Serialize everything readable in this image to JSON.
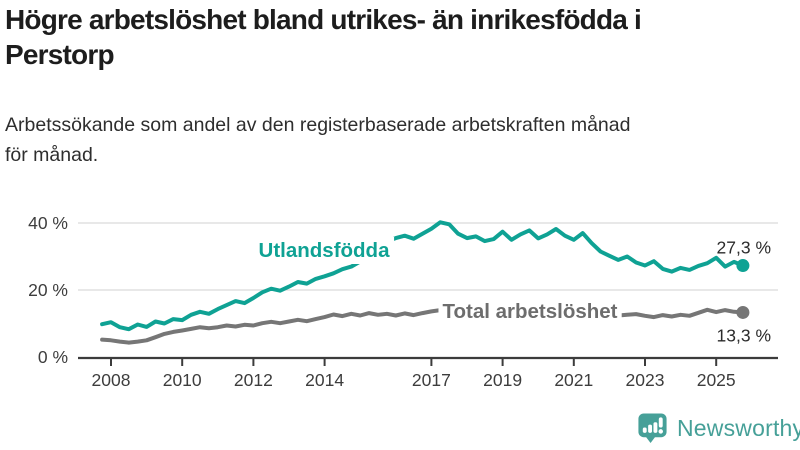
{
  "title_lines": [
    "Högre arbetslöshet bland utrikes- än inrikesfödda i",
    "Perstorp"
  ],
  "subtitle_lines": [
    "Arbetssökande som andel av den registerbaserade arbetskraften månad",
    "för månad."
  ],
  "footer": {
    "brand": "Newsworthy",
    "logo_icon": "bar-chart-speech-bubble-icon"
  },
  "colors": {
    "accent_teal": "#0fa294",
    "line_gray": "#767676",
    "label_gray": "#6d6d6d",
    "grid": "#d9d9d9",
    "axis": "#3c3c3c",
    "tick_text": "#3d3d3d",
    "value_text": "#2b2b2b",
    "brand_teal": "#46a098"
  },
  "chart_data": {
    "type": "line",
    "title": "Högre arbetslöshet bland utrikes- än inrikesfödda i Perstorp",
    "subtitle": "Arbetssökande som andel av den registerbaserade arbetskraften månad för månad.",
    "xlabel": "",
    "ylabel": "",
    "x_unit": "decimal_year_monthly_share_of_labour_force",
    "x_start": 2007.75,
    "x_step": 0.25,
    "x_ticks": [
      2008,
      2010,
      2012,
      2014,
      2017,
      2019,
      2021,
      2023,
      2025
    ],
    "y_ticks": [
      0,
      20,
      40
    ],
    "y_tick_labels": [
      "0 %",
      "20 %",
      "40 %"
    ],
    "ylim": [
      0,
      44
    ],
    "grid": "horizontal",
    "legend_position": "inline-on-line",
    "series": [
      {
        "name": "Utlandsfödda",
        "color": "#0fa294",
        "end_label": "27,3 %",
        "end_value": 27.3,
        "values": [
          9.8,
          10.4,
          8.9,
          8.3,
          9.7,
          9.0,
          10.6,
          10.0,
          11.3,
          11.0,
          12.6,
          13.5,
          12.9,
          14.3,
          15.5,
          16.7,
          16.1,
          17.6,
          19.3,
          20.4,
          19.8,
          21.0,
          22.4,
          21.9,
          23.3,
          24.1,
          25.0,
          26.2,
          27.0,
          28.5,
          30.0,
          32.0,
          34.5,
          35.5,
          36.2,
          35.3,
          36.8,
          38.3,
          40.2,
          39.6,
          36.8,
          35.5,
          36.0,
          34.6,
          35.2,
          37.4,
          35.0,
          36.6,
          37.8,
          35.4,
          36.6,
          38.2,
          36.2,
          35.0,
          37.0,
          34.0,
          31.5,
          30.2,
          29.0,
          30.0,
          28.2,
          27.3,
          28.6,
          26.3,
          25.5,
          26.6,
          26.0,
          27.2,
          28.0,
          29.6,
          27.0,
          28.4,
          27.3
        ]
      },
      {
        "name": "Total arbetslöshet",
        "color": "#767676",
        "end_label": "13,3 %",
        "end_value": 13.3,
        "values": [
          5.2,
          5.0,
          4.6,
          4.3,
          4.6,
          5.0,
          5.9,
          6.9,
          7.5,
          7.9,
          8.4,
          8.9,
          8.6,
          8.9,
          9.4,
          9.1,
          9.6,
          9.4,
          10.1,
          10.5,
          10.1,
          10.6,
          11.1,
          10.7,
          11.3,
          11.9,
          12.7,
          12.2,
          12.9,
          12.4,
          13.1,
          12.6,
          12.9,
          12.4,
          13.0,
          12.5,
          13.1,
          13.6,
          14.0,
          13.6,
          13.3,
          13.0,
          12.8,
          13.1,
          12.8,
          12.5,
          12.9,
          12.5,
          12.3,
          12.7,
          13.3,
          13.6,
          13.1,
          12.8,
          12.5,
          12.2,
          12.5,
          12.1,
          12.4,
          12.6,
          12.8,
          12.3,
          11.9,
          12.5,
          12.1,
          12.6,
          12.3,
          13.2,
          14.1,
          13.4,
          14.0,
          13.5,
          13.3
        ]
      }
    ]
  }
}
